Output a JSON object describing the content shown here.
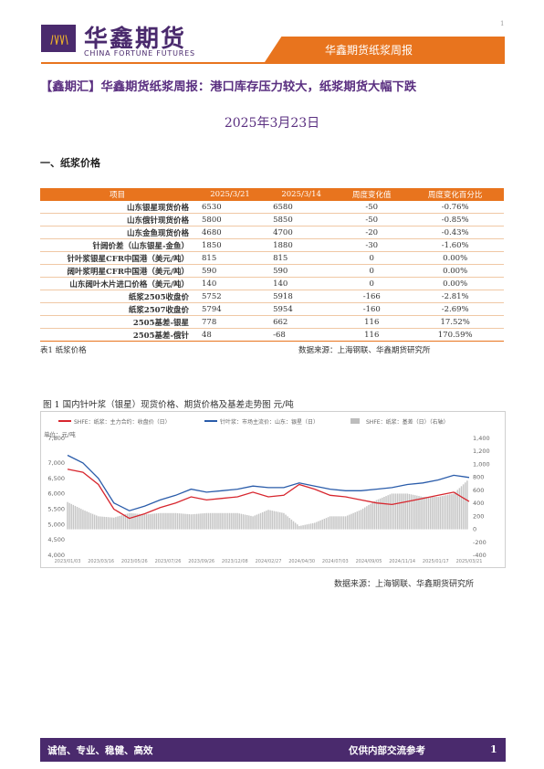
{
  "header": {
    "logo_mark": "ﾊﾊﾊ",
    "logo_cn": "华鑫期货",
    "logo_en": "CHINA FORTUNE FUTURES",
    "report_name": "华鑫期货纸浆周报",
    "corner_mark": "1"
  },
  "title": "【鑫期汇】华鑫期货纸浆周报：港口库存压力较大，纸浆期货大幅下跌",
  "date": "2025年3月23日",
  "section_heading": "一、纸浆价格",
  "table": {
    "headers": [
      "项目",
      "2025/3/21",
      "2025/3/14",
      "周度变化值",
      "周度变化百分比"
    ],
    "rows": [
      [
        "山东银星现货价格",
        "6530",
        "6580",
        "-50",
        "-0.76%"
      ],
      [
        "山东俄针现货价格",
        "5800",
        "5850",
        "-50",
        "-0.85%"
      ],
      [
        "山东金鱼现货价格",
        "4680",
        "4700",
        "-20",
        "-0.43%"
      ],
      [
        "针阔价差（山东银星-金鱼）",
        "1850",
        "1880",
        "-30",
        "-1.60%"
      ],
      [
        "针叶浆银星CFR中国港（美元/吨）",
        "815",
        "815",
        "0",
        "0.00%"
      ],
      [
        "阔叶浆明星CFR中国港（美元/吨）",
        "590",
        "590",
        "0",
        "0.00%"
      ],
      [
        "山东阔叶木片进口价格（美元/吨）",
        "140",
        "140",
        "0",
        "0.00%"
      ],
      [
        "纸浆2505收盘价",
        "5752",
        "5918",
        "-166",
        "-2.81%"
      ],
      [
        "纸浆2507收盘价",
        "5794",
        "5954",
        "-160",
        "-2.69%"
      ],
      [
        "2505基差-银星",
        "778",
        "662",
        "116",
        "17.52%"
      ],
      [
        "2505基差-俄针",
        "48",
        "-68",
        "116",
        "170.59%"
      ]
    ],
    "caption": "表1 纸浆价格",
    "source": "数据来源：上海钢联、华鑫期货研究所"
  },
  "figure": {
    "title": "图 1 国内针叶浆（银星）现货价格、期货价格及基差走势图 元/吨",
    "source": "数据来源：上海钢联、华鑫期货研究所"
  },
  "chart_data": {
    "type": "line",
    "legend": [
      {
        "name": "SHFE：纸浆：主力合约：收盘价（日）",
        "color": "#d7262e"
      },
      {
        "name": "针叶浆：市场主流价：山东：银星（日）",
        "color": "#2a5caa"
      },
      {
        "name": "SHFE：纸浆：基差（日）（右轴）",
        "color": "#bdbdbd"
      }
    ],
    "y_left": {
      "unit": "元/吨",
      "ylim": [
        4000,
        7800
      ],
      "ticks": [
        "7,800",
        "7,000",
        "6,500",
        "6,000",
        "5,500",
        "5,000",
        "4,500",
        "4,000"
      ]
    },
    "y_right": {
      "ylim": [
        -400,
        1400
      ],
      "ticks": [
        "1,400",
        "1,200",
        "1,000",
        "800",
        "600",
        "400",
        "200",
        "0",
        "-200",
        "-400"
      ]
    },
    "x_ticks": [
      "2023/01/03",
      "2023/03/16",
      "2023/05/26",
      "2023/07/26",
      "2023/09/26",
      "2023/12/08",
      "2024/02/27",
      "2024/04/30",
      "2024/07/03",
      "2024/09/05",
      "2024/11/14",
      "2025/01/17",
      "2025/03/21"
    ],
    "x": [
      "2023/01",
      "2023/02",
      "2023/03",
      "2023/04",
      "2023/05",
      "2023/06",
      "2023/07",
      "2023/08",
      "2023/09",
      "2023/10",
      "2023/11",
      "2023/12",
      "2024/01",
      "2024/02",
      "2024/03",
      "2024/04",
      "2024/05",
      "2024/06",
      "2024/07",
      "2024/08",
      "2024/09",
      "2024/10",
      "2024/11",
      "2024/12",
      "2025/01",
      "2025/02",
      "2025/03"
    ],
    "series": [
      {
        "name": "SHFE：纸浆：主力合约：收盘价（日）",
        "axis": "left",
        "values": [
          6800,
          6700,
          6300,
          5500,
          5200,
          5350,
          5550,
          5700,
          5900,
          5800,
          5850,
          5900,
          6050,
          5900,
          5950,
          6300,
          6150,
          5950,
          5900,
          5800,
          5700,
          5650,
          5750,
          5850,
          5950,
          6050,
          5750
        ]
      },
      {
        "name": "针叶浆：市场主流价：山东：银星（日）",
        "axis": "left",
        "values": [
          7250,
          7000,
          6500,
          5700,
          5450,
          5600,
          5800,
          5950,
          6150,
          6050,
          6100,
          6150,
          6250,
          6200,
          6200,
          6350,
          6250,
          6150,
          6100,
          6100,
          6150,
          6200,
          6300,
          6350,
          6450,
          6600,
          6530
        ]
      },
      {
        "name": "SHFE：纸浆：基差（日）（右轴）",
        "axis": "right",
        "values": [
          420,
          300,
          200,
          180,
          250,
          230,
          250,
          250,
          230,
          250,
          250,
          250,
          200,
          300,
          250,
          50,
          100,
          200,
          200,
          300,
          450,
          550,
          550,
          500,
          500,
          550,
          778
        ]
      }
    ]
  }
}
